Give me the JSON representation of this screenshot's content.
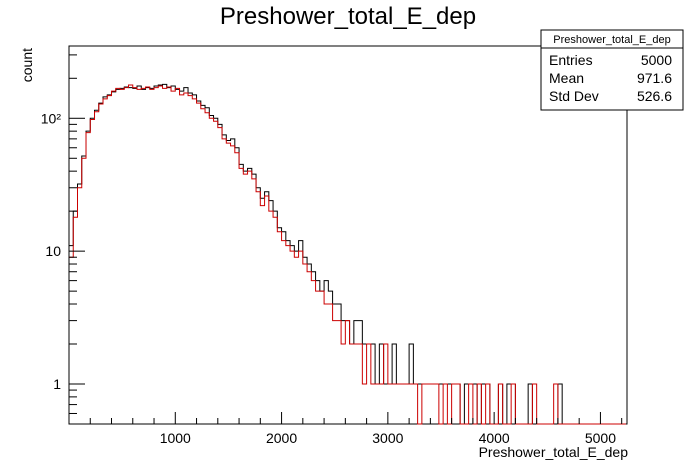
{
  "chart_data": {
    "type": "histogram",
    "title": "Preshower_total_E_dep",
    "xlabel": "Preshower_total_E_dep",
    "ylabel": "count",
    "xlim": [
      0,
      5250
    ],
    "ylim": [
      0.5,
      350
    ],
    "yscale": "log",
    "grid": false,
    "x_ticks": [
      1000,
      2000,
      3000,
      4000,
      5000
    ],
    "x_tick_labels": [
      "1000",
      "2000",
      "3000",
      "4000",
      "5000"
    ],
    "y_ticks": [
      1,
      10,
      100
    ],
    "y_tick_labels": [
      "1",
      "10",
      "10²"
    ],
    "bin_width": 40,
    "legend_placement": "top-right",
    "series": [
      {
        "color": "#000000",
        "x_start": 0,
        "values": [
          11,
          20,
          32,
          52,
          80,
          100,
          115,
          130,
          145,
          150,
          158,
          165,
          168,
          172,
          170,
          168,
          175,
          165,
          170,
          168,
          175,
          178,
          180,
          170,
          175,
          165,
          160,
          170,
          155,
          150,
          135,
          125,
          120,
          105,
          100,
          90,
          75,
          68,
          70,
          60,
          45,
          40,
          42,
          38,
          30,
          25,
          28,
          24,
          20,
          15,
          14,
          12,
          11,
          10,
          12,
          9,
          8,
          7,
          6,
          5,
          6,
          5,
          4,
          4,
          3,
          3,
          2,
          3,
          3,
          2,
          2,
          2,
          1,
          2,
          1,
          1,
          2,
          1,
          1,
          1,
          2,
          1,
          1,
          1,
          1,
          1,
          1,
          1,
          1,
          1,
          1,
          1,
          0,
          1,
          1,
          1,
          0,
          1,
          1,
          0,
          0,
          1,
          0,
          1,
          1,
          0,
          0,
          0,
          1,
          0,
          0,
          0,
          0,
          0,
          0,
          1,
          0,
          0,
          0,
          0,
          0,
          0,
          0,
          0,
          0,
          0,
          0,
          0,
          0,
          0,
          0
        ]
      },
      {
        "color": "#cc0000",
        "x_start": 0,
        "values": [
          9,
          18,
          30,
          50,
          78,
          98,
          112,
          128,
          140,
          148,
          160,
          168,
          165,
          170,
          178,
          170,
          165,
          168,
          172,
          165,
          170,
          175,
          168,
          172,
          160,
          168,
          150,
          155,
          148,
          140,
          130,
          118,
          110,
          100,
          95,
          85,
          70,
          65,
          62,
          55,
          42,
          38,
          40,
          35,
          28,
          22,
          26,
          20,
          18,
          14,
          12,
          11,
          10,
          9,
          10,
          8,
          7,
          6,
          5,
          5,
          4,
          4,
          3,
          3,
          2,
          3,
          2,
          2,
          2,
          1,
          2,
          1,
          1,
          1,
          2,
          1,
          1,
          1,
          1,
          1,
          1,
          1,
          0,
          1,
          1,
          1,
          1,
          0,
          1,
          0,
          1,
          1,
          0,
          0,
          1,
          0,
          1,
          0,
          1,
          0,
          0,
          1,
          0,
          0,
          1,
          0,
          0,
          0,
          0,
          1,
          0,
          0,
          0,
          0,
          1,
          0,
          0,
          0,
          0,
          0,
          0,
          0,
          0,
          0,
          0,
          0,
          0,
          0,
          0,
          0,
          0
        ]
      }
    ]
  },
  "stats_box": {
    "title": "Preshower_total_E_dep",
    "rows": [
      {
        "label": "Entries",
        "value": "5000"
      },
      {
        "label": "Mean",
        "value": "971.6"
      },
      {
        "label": "Std Dev",
        "value": "526.6"
      }
    ]
  }
}
